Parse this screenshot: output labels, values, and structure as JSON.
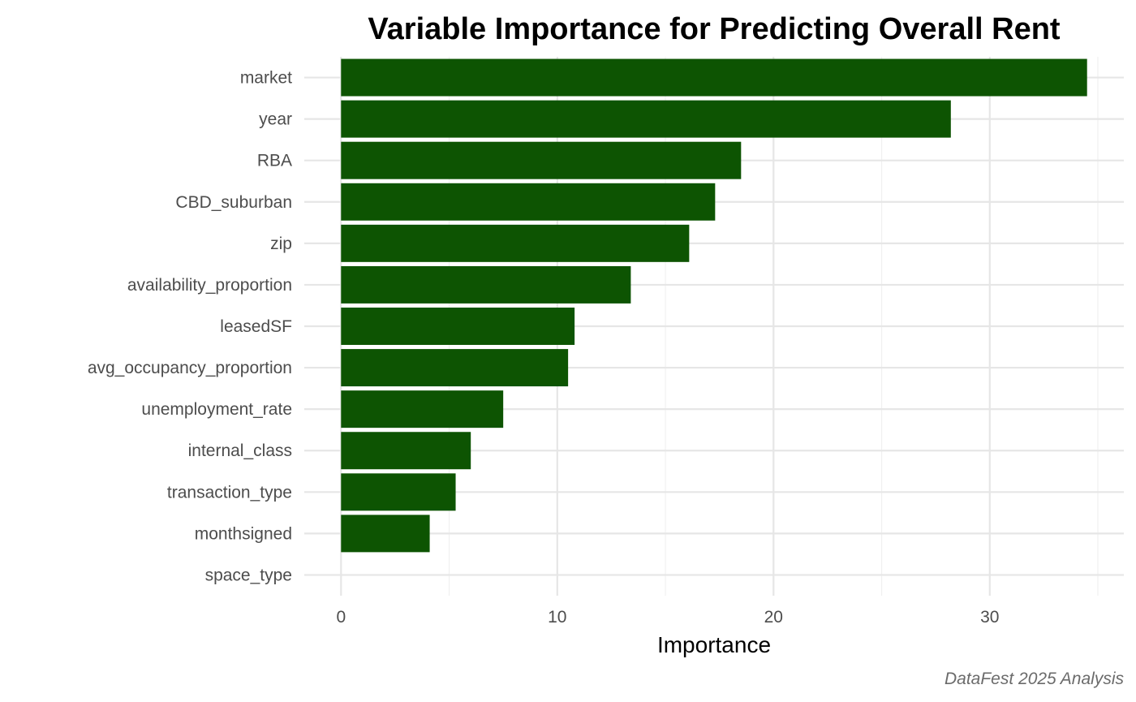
{
  "chart_data": {
    "type": "bar",
    "orientation": "horizontal",
    "title": "Variable Importance for Predicting Overall Rent",
    "xlabel": "Importance",
    "ylabel": "",
    "caption": "DataFest 2025 Analysis",
    "xlim": [
      -1.7,
      36.2
    ],
    "x_ticks": [
      0,
      10,
      20,
      30
    ],
    "x_tick_labels": [
      "0",
      "10",
      "20",
      "30"
    ],
    "grid": true,
    "categories": [
      "market",
      "year",
      "RBA",
      "CBD_suburban",
      "zip",
      "availability_proportion",
      "leasedSF",
      "avg_occupancy_proportion",
      "unemployment_rate",
      "internal_class",
      "transaction_type",
      "monthsigned",
      "space_type"
    ],
    "values": [
      34.5,
      28.2,
      18.5,
      17.3,
      16.1,
      13.4,
      10.8,
      10.5,
      7.5,
      6.0,
      5.3,
      4.1,
      0.0
    ],
    "bar_color": "#0d5402"
  }
}
